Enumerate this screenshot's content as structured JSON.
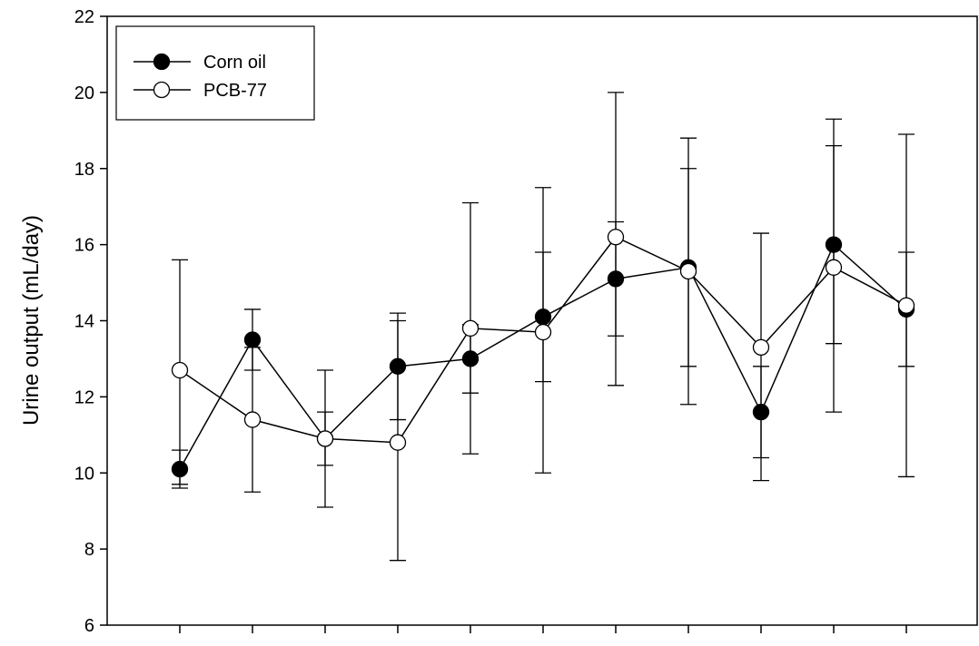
{
  "chart_data": {
    "type": "line",
    "title": "",
    "xlabel": "",
    "ylabel": "Urine output (mL/day)",
    "ylim": [
      6,
      22
    ],
    "yticks": [
      6,
      8,
      10,
      12,
      14,
      16,
      18,
      20,
      22
    ],
    "x": [
      1,
      2,
      3,
      4,
      5,
      6,
      7,
      8,
      9,
      10,
      11
    ],
    "grid": false,
    "legend": {
      "position": "top-left",
      "entries": [
        "Corn oil",
        "PCB-77"
      ]
    },
    "series": [
      {
        "name": "Corn oil",
        "marker": "filled-circle",
        "values": [
          10.1,
          13.5,
          10.9,
          12.8,
          13.0,
          14.1,
          15.1,
          15.4,
          11.6,
          16.0,
          14.3
        ],
        "err_low": [
          9.6,
          12.7,
          10.2,
          11.4,
          12.1,
          12.4,
          13.6,
          12.8,
          10.4,
          13.4,
          12.8
        ],
        "err_high": [
          10.6,
          14.3,
          11.6,
          14.2,
          13.9,
          15.8,
          16.6,
          18.0,
          12.8,
          18.6,
          15.8
        ]
      },
      {
        "name": "PCB-77",
        "marker": "open-circle",
        "values": [
          12.7,
          11.4,
          10.9,
          10.8,
          13.8,
          13.7,
          16.2,
          15.3,
          13.3,
          15.4,
          14.4
        ],
        "err_low": [
          9.7,
          9.5,
          9.1,
          7.7,
          10.5,
          10.0,
          12.3,
          11.8,
          9.8,
          11.6,
          9.9
        ],
        "err_high": [
          15.6,
          13.3,
          12.7,
          14.0,
          17.1,
          17.5,
          20.0,
          18.8,
          16.3,
          19.3,
          18.9
        ]
      }
    ]
  }
}
